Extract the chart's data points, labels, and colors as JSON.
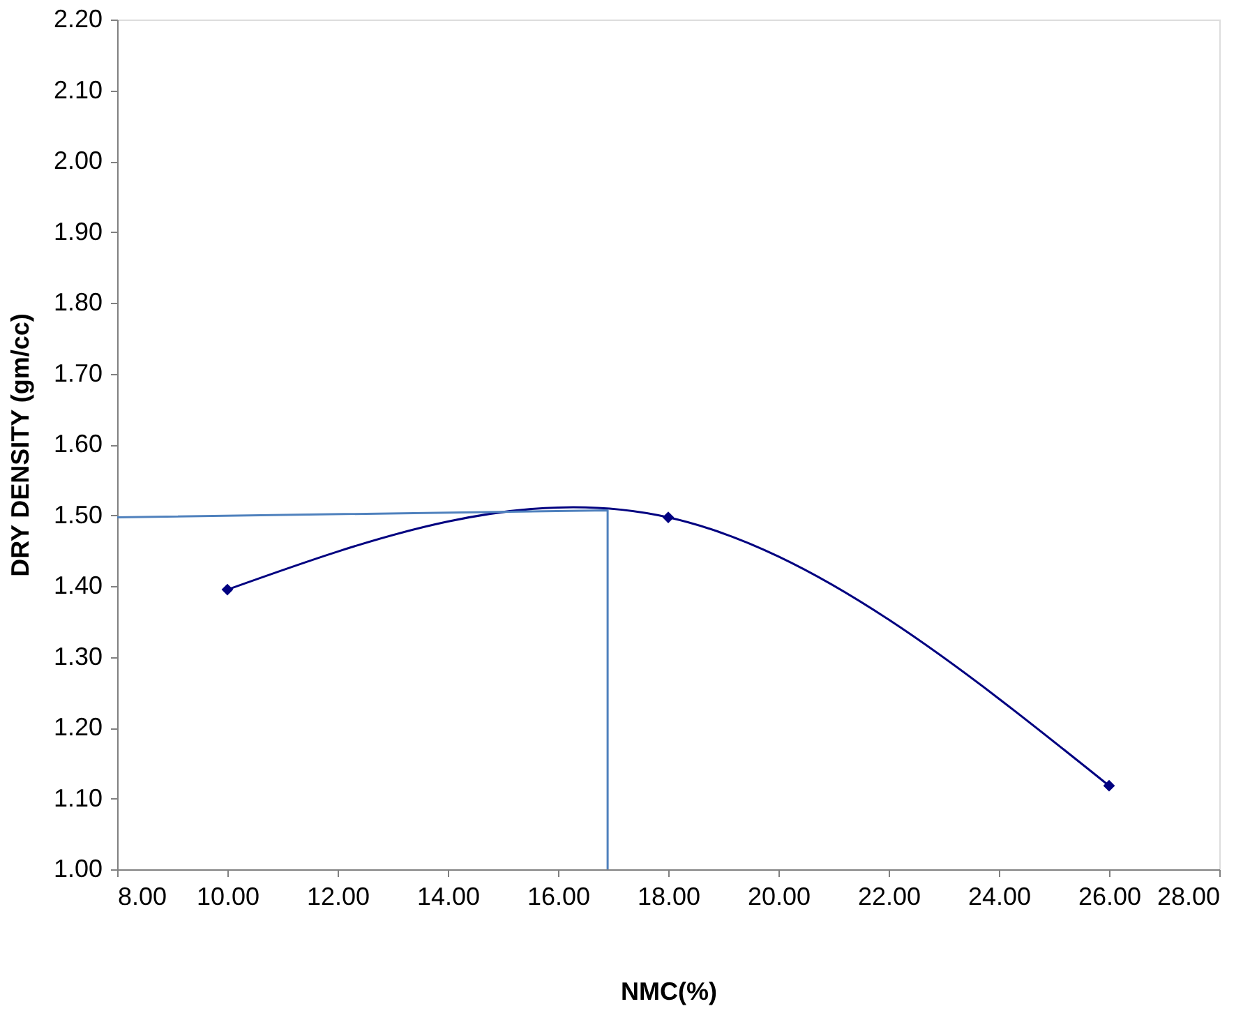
{
  "chart_data": {
    "type": "line",
    "xlabel": "NMC(%)",
    "ylabel": "DRY DENSITY (gm/cc)",
    "series": [
      {
        "color": "#000080",
        "marker": "diamond",
        "x": [
          10,
          18,
          26
        ],
        "values": [
          1.395,
          1.497,
          1.118
        ]
      },
      {
        "color": "#4f81bd",
        "marker": "none",
        "x": [
          8,
          16.9,
          16.9
        ],
        "values": [
          1.497,
          1.507,
          1.0
        ]
      }
    ],
    "xlim": [
      8,
      28
    ],
    "xticks": [
      {
        "value": 8,
        "label": "8.00"
      },
      {
        "value": 10,
        "label": "10.00"
      },
      {
        "value": 12,
        "label": "12.00"
      },
      {
        "value": 14,
        "label": "14.00"
      },
      {
        "value": 16,
        "label": "16.00"
      },
      {
        "value": 18,
        "label": "18.00"
      },
      {
        "value": 20,
        "label": "20.00"
      },
      {
        "value": 22,
        "label": "22.00"
      },
      {
        "value": 24,
        "label": "24.00"
      },
      {
        "value": 26,
        "label": "26.00"
      },
      {
        "value": 28,
        "label": "28.00"
      }
    ],
    "ylim": [
      1.0,
      2.2
    ],
    "yticks": [
      {
        "value": 1.0,
        "label": "1.00"
      },
      {
        "value": 1.1,
        "label": "1.10"
      },
      {
        "value": 1.2,
        "label": "1.20"
      },
      {
        "value": 1.3,
        "label": "1.30"
      },
      {
        "value": 1.4,
        "label": "1.40"
      },
      {
        "value": 1.5,
        "label": "1.50"
      },
      {
        "value": 1.6,
        "label": "1.60"
      },
      {
        "value": 1.7,
        "label": "1.70"
      },
      {
        "value": 1.8,
        "label": "1.80"
      },
      {
        "value": 1.9,
        "label": "1.90"
      },
      {
        "value": 2.0,
        "label": "2.00"
      },
      {
        "value": 2.1,
        "label": "2.10"
      },
      {
        "value": 2.2,
        "label": "2.20"
      }
    ],
    "grid": false
  }
}
